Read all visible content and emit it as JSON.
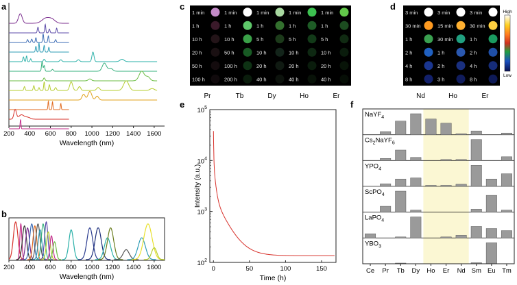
{
  "panels": {
    "a": "a",
    "b": "b",
    "c": "c",
    "d": "d",
    "e": "e",
    "f": "f"
  },
  "chart_data": [
    {
      "panel": "a",
      "type": "line",
      "xlabel": "Wavelength (nm)",
      "ylabel": "",
      "xlim": [
        200,
        1700
      ],
      "xticks": [
        "200",
        "400",
        "600",
        "800",
        "1000",
        "1200",
        "1400",
        "1600"
      ],
      "series": [
        {
          "name": "s1",
          "color": "#7b2d8e",
          "xmax": 780,
          "baseline_rank": 0,
          "peaks": [
            [
              310,
              1.0,
              18
            ],
            [
              560,
              0.55,
              40
            ],
            [
              620,
              0.3,
              30
            ]
          ]
        },
        {
          "name": "s2",
          "color": "#5b4aa8",
          "xmax": 780,
          "baseline_rank": 1,
          "peaks": [
            [
              480,
              0.6,
              6
            ],
            [
              550,
              0.9,
              5
            ],
            [
              590,
              0.4,
              6
            ],
            [
              660,
              0.5,
              5
            ]
          ]
        },
        {
          "name": "s3",
          "color": "#3b6bb5",
          "xmax": 780,
          "baseline_rank": 2,
          "peaks": [
            [
              380,
              0.3,
              6
            ],
            [
              420,
              0.35,
              6
            ],
            [
              460,
              0.5,
              5
            ],
            [
              530,
              0.9,
              5
            ],
            [
              580,
              0.7,
              5
            ],
            [
              650,
              0.3,
              6
            ]
          ]
        },
        {
          "name": "s4",
          "color": "#2e9cb6",
          "xmax": 780,
          "baseline_rank": 3,
          "peaks": [
            [
              460,
              0.6,
              5
            ],
            [
              490,
              1.0,
              4
            ],
            [
              540,
              0.7,
              5
            ],
            [
              585,
              0.5,
              5
            ]
          ]
        },
        {
          "name": "s5",
          "color": "#2ab0a8",
          "xmax": 1630,
          "baseline_rank": 4,
          "peaks": [
            [
              340,
              0.5,
              6
            ],
            [
              370,
              0.6,
              5
            ],
            [
              410,
              0.3,
              6
            ],
            [
              540,
              0.25,
              8
            ],
            [
              700,
              0.2,
              10
            ],
            [
              870,
              0.2,
              12
            ],
            [
              1010,
              1.0,
              10
            ],
            [
              1290,
              0.25,
              20
            ]
          ]
        },
        {
          "name": "s6",
          "color": "#36b07e",
          "xmax": 1630,
          "baseline_rank": 5,
          "peaks": [
            [
              520,
              1.0,
              6
            ],
            [
              540,
              0.6,
              6
            ],
            [
              620,
              0.2,
              8
            ],
            [
              1120,
              0.85,
              20
            ],
            [
              1180,
              0.3,
              20
            ]
          ]
        },
        {
          "name": "s7",
          "color": "#6cbd45",
          "xmax": 1630,
          "baseline_rank": 6,
          "peaks": [
            [
              540,
              0.3,
              8
            ],
            [
              980,
              0.2,
              15
            ],
            [
              1480,
              1.0,
              25
            ],
            [
              1540,
              0.4,
              20
            ]
          ]
        },
        {
          "name": "s8",
          "color": "#b5cc2e",
          "xmax": 1630,
          "baseline_rank": 7,
          "peaks": [
            [
              350,
              0.4,
              6
            ],
            [
              440,
              0.5,
              6
            ],
            [
              490,
              0.3,
              6
            ],
            [
              540,
              0.9,
              5
            ],
            [
              590,
              0.6,
              6
            ],
            [
              650,
              0.3,
              8
            ],
            [
              800,
              0.9,
              14
            ],
            [
              880,
              0.4,
              12
            ],
            [
              1060,
              0.3,
              15
            ],
            [
              1330,
              1.0,
              25
            ],
            [
              1580,
              0.2,
              20
            ]
          ]
        },
        {
          "name": "s9",
          "color": "#e0a21a",
          "xmax": 1630,
          "baseline_rank": 8,
          "peaks": [
            [
              920,
              0.6,
              15
            ],
            [
              980,
              0.9,
              18
            ],
            [
              1050,
              0.4,
              15
            ]
          ]
        },
        {
          "name": "s10",
          "color": "#e06a1e",
          "xmax": 780,
          "baseline_rank": 9,
          "peaks": [
            [
              580,
              0.9,
              4
            ],
            [
              620,
              0.85,
              4
            ],
            [
              700,
              0.65,
              4
            ]
          ]
        },
        {
          "name": "s11",
          "color": "#d7302a",
          "xmax": 780,
          "baseline_rank": 10,
          "peaks": [
            [
              260,
              1.0,
              12
            ],
            [
              320,
              0.45,
              25
            ],
            [
              380,
              0.2,
              25
            ]
          ]
        },
        {
          "name": "s12",
          "color": "#c22e8a",
          "xmax": 780,
          "baseline_rank": 11,
          "peaks": [
            [
              312,
              1.0,
              4
            ]
          ]
        }
      ]
    },
    {
      "panel": "b",
      "type": "line",
      "xlabel": "Wavelength (nm)",
      "xlim": [
        200,
        1700
      ],
      "xticks": [
        "200",
        "400",
        "600",
        "800",
        "1000",
        "1200",
        "1400",
        "1600"
      ],
      "series": [
        {
          "color": "#d7302a",
          "center": 265,
          "width": 22,
          "height": 0.95
        },
        {
          "color": "#c22e8a",
          "center": 315,
          "width": 10,
          "height": 0.9
        },
        {
          "color": "#333333",
          "center": 350,
          "width": 20,
          "height": 0.85
        },
        {
          "color": "#7b2d8e",
          "center": 380,
          "width": 18,
          "height": 0.8
        },
        {
          "color": "#3b6bb5",
          "center": 420,
          "width": 20,
          "height": 0.9
        },
        {
          "color": "#e06a1e",
          "center": 450,
          "width": 18,
          "height": 0.85
        },
        {
          "color": "#555555",
          "center": 480,
          "width": 20,
          "height": 0.9
        },
        {
          "color": "#2e9cb6",
          "center": 500,
          "width": 18,
          "height": 0.75
        },
        {
          "color": "#36b07e",
          "center": 530,
          "width": 18,
          "height": 0.9
        },
        {
          "color": "#5b4aa8",
          "center": 560,
          "width": 16,
          "height": 0.95
        },
        {
          "color": "#b5cc2e",
          "center": 580,
          "width": 18,
          "height": 0.7
        },
        {
          "color": "#c22e8a",
          "center": 610,
          "width": 14,
          "height": 0.6
        },
        {
          "color": "#6cbd45",
          "center": 640,
          "width": 16,
          "height": 0.45
        },
        {
          "color": "#2ab0a8",
          "center": 800,
          "width": 22,
          "height": 0.75
        },
        {
          "color": "#2a3b8f",
          "center": 980,
          "width": 28,
          "height": 0.8
        },
        {
          "color": "#1b2d7a",
          "center": 1060,
          "width": 30,
          "height": 0.8
        },
        {
          "color": "#2ab0a8",
          "center": 1150,
          "width": 30,
          "height": 0.55
        },
        {
          "color": "#6a7d1e",
          "center": 1180,
          "width": 30,
          "height": 0.8
        },
        {
          "color": "#555555",
          "center": 1330,
          "width": 30,
          "height": 0.25
        },
        {
          "color": "#2e9cb6",
          "center": 1480,
          "width": 35,
          "height": 0.55
        },
        {
          "color": "#e8e02a",
          "center": 1540,
          "width": 40,
          "height": 0.9
        },
        {
          "color": "#b5cc2e",
          "center": 1600,
          "width": 25,
          "height": 0.3
        }
      ]
    },
    {
      "panel": "c",
      "type": "table",
      "columns": [
        "Pr",
        "Tb",
        "Dy",
        "Ho",
        "Er"
      ],
      "rows": [
        {
          "times": [
            "1 min",
            "1 min",
            "1 min",
            "1 min",
            "1 min"
          ],
          "colors": [
            "#c48bc8",
            "#ffffff",
            "#a8d8a0",
            "#3cc050",
            "#62c84a"
          ]
        },
        {
          "times": [
            "1 h",
            "1 h",
            "1 h",
            "1 h",
            "1 h"
          ],
          "colors": [
            "#3a1a2a",
            "#5ec86a",
            "#33702e",
            "#1e5c26",
            "#1c4c20"
          ]
        },
        {
          "times": [
            "10 h",
            "10 h",
            "5 h",
            "5 h",
            "5 h"
          ],
          "colors": [
            "#231418",
            "#3aa048",
            "#1c3a1a",
            "#123a18",
            "#102a12"
          ]
        },
        {
          "times": [
            "20 h",
            "50 h",
            "10 h",
            "10 h",
            "10 h"
          ],
          "colors": [
            "#1a1012",
            "#185a24",
            "#13241a",
            "#0e2812",
            "#0a1c0c"
          ]
        },
        {
          "times": [
            "50 h",
            "100 h",
            "20 h",
            "20 h",
            "20 h"
          ],
          "colors": [
            "#140c0e",
            "#0e3214",
            "#101a12",
            "#0a1c0c",
            "#081408"
          ]
        },
        {
          "times": [
            "100 h",
            "200 h",
            "40 h",
            "40 h",
            "40 h"
          ],
          "colors": [
            "#100a0c",
            "#0a1c0c",
            "#0c120c",
            "#081208",
            "#060e06"
          ]
        }
      ]
    },
    {
      "panel": "d",
      "type": "table",
      "columns": [
        "Nd",
        "Ho",
        "Er"
      ],
      "rows": [
        {
          "times": [
            "3 min",
            "3 min",
            "3 min"
          ],
          "colors": [
            "#ffffff",
            "#ffffff",
            "#ffffff"
          ]
        },
        {
          "times": [
            "30 min",
            "15 min",
            "30 min"
          ],
          "colors": [
            "#ff9a20",
            "#ffb030",
            "#ffd040"
          ]
        },
        {
          "times": [
            "1 h",
            "30 min",
            "1 h"
          ],
          "colors": [
            "#3aa050",
            "#20a080",
            "#1a9a60"
          ]
        },
        {
          "times": [
            "2 h",
            "1 h",
            "2 h"
          ],
          "colors": [
            "#2060c0",
            "#2a58b0",
            "#1f4fa8"
          ]
        },
        {
          "times": [
            "4 h",
            "2 h",
            "4 h"
          ],
          "colors": [
            "#1a3690",
            "#1a3080",
            "#162c78"
          ]
        },
        {
          "times": [
            "8 h",
            "3 h",
            "8 h"
          ],
          "colors": [
            "#12206a",
            "#101c5c",
            "#0e1a56"
          ]
        }
      ],
      "colorbar": {
        "high": "High",
        "low": "Low"
      }
    },
    {
      "panel": "e",
      "type": "line",
      "xlabel": "Time (h)",
      "ylabel": "Intensity (a.u.)",
      "yscale": "log",
      "xlim": [
        -5,
        170
      ],
      "ylim": [
        100,
        100000
      ],
      "xticks": [
        "0",
        "50",
        "100",
        "150"
      ],
      "yticks": [
        {
          "base": "10",
          "exp": "2"
        },
        {
          "base": "10",
          "exp": "3"
        },
        {
          "base": "10",
          "exp": "4"
        },
        {
          "base": "10",
          "exp": "5"
        }
      ],
      "series": [
        {
          "name": "decay",
          "color": "#d7302a",
          "x_start": 0,
          "x_end": 168,
          "y_start": 38000,
          "y_plateau": 135
        }
      ]
    },
    {
      "panel": "f",
      "type": "bar",
      "categories": [
        "Ce",
        "Pr",
        "Tb",
        "Dy",
        "Ho",
        "Er",
        "Nd",
        "Sm",
        "Eu",
        "Tm"
      ],
      "highlight": [
        "Ho",
        "Er",
        "Nd"
      ],
      "hosts": [
        {
          "label": "NaYF",
          "sub": "4",
          "mid": "",
          "sub2": "",
          "values": [
            0,
            0.15,
            0.65,
            1.0,
            0.75,
            0.55,
            0.05,
            0.18,
            0,
            0.08
          ]
        },
        {
          "label": "Cs",
          "sub": "2",
          "mid": "NaYF",
          "sub2": "6",
          "values": [
            0,
            0.1,
            0.5,
            0.15,
            0,
            0.05,
            0.05,
            1.0,
            0,
            0.18
          ]
        },
        {
          "label": "YPO",
          "sub": "4",
          "mid": "",
          "sub2": "",
          "values": [
            0,
            0.12,
            0.35,
            0.4,
            0.05,
            0.05,
            0.1,
            1.0,
            0.35,
            0.6
          ]
        },
        {
          "label": "ScPO",
          "sub": "4",
          "mid": "",
          "sub2": "",
          "values": [
            0,
            0.28,
            1.0,
            0.1,
            0,
            0,
            0,
            0.14,
            0.8,
            0.1
          ]
        },
        {
          "label": "LaPO",
          "sub": "4",
          "mid": "",
          "sub2": "",
          "values": [
            0.2,
            0,
            0.05,
            1.0,
            0,
            0.05,
            0.13,
            0.55,
            0.45,
            0.35
          ]
        },
        {
          "label": "YBO",
          "sub": "3",
          "mid": "",
          "sub2": "",
          "values": [
            0,
            0,
            0.03,
            0,
            0,
            0,
            0,
            0.05,
            1.0,
            0
          ]
        }
      ]
    }
  ]
}
